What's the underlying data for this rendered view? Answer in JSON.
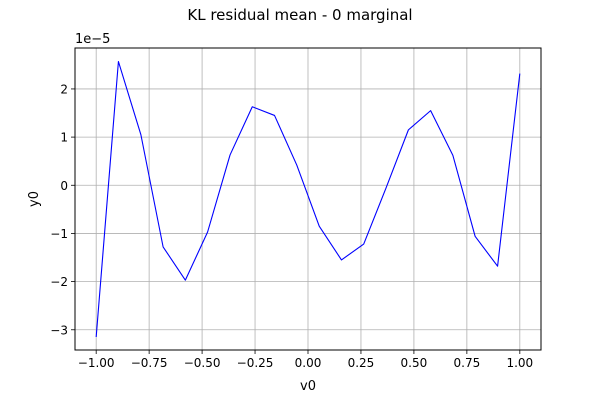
{
  "chart_data": {
    "type": "line",
    "title": "KL residual mean - 0 marginal",
    "xlabel": "v0",
    "ylabel": "y0",
    "offset_text": "1e−5",
    "xlim": [
      -1.1,
      1.1
    ],
    "ylim": [
      -3.42,
      2.85
    ],
    "grid": true,
    "x_ticks": [
      -1.0,
      -0.75,
      -0.5,
      -0.25,
      0.0,
      0.25,
      0.5,
      0.75,
      1.0
    ],
    "x_tick_labels": [
      "−1.00",
      "−0.75",
      "−0.50",
      "−0.25",
      "0.00",
      "0.25",
      "0.50",
      "0.75",
      "1.00"
    ],
    "y_ticks": [
      -3,
      -2,
      -1,
      0,
      1,
      2
    ],
    "y_tick_labels": [
      "−3",
      "−2",
      "−1",
      "0",
      "1",
      "2"
    ],
    "series": [
      {
        "color": "#0000ff",
        "x": [
          -1.0,
          -0.895,
          -0.789,
          -0.684,
          -0.579,
          -0.474,
          -0.368,
          -0.263,
          -0.158,
          -0.053,
          0.053,
          0.158,
          0.263,
          0.368,
          0.474,
          0.579,
          0.684,
          0.789,
          0.895,
          1.0
        ],
        "y": [
          -3.15,
          2.57,
          1.05,
          -1.28,
          -1.97,
          -0.97,
          0.63,
          1.63,
          1.45,
          0.42,
          -0.85,
          -1.55,
          -1.22,
          -0.06,
          1.15,
          1.55,
          0.62,
          -1.06,
          -1.68,
          2.32
        ]
      }
    ]
  }
}
